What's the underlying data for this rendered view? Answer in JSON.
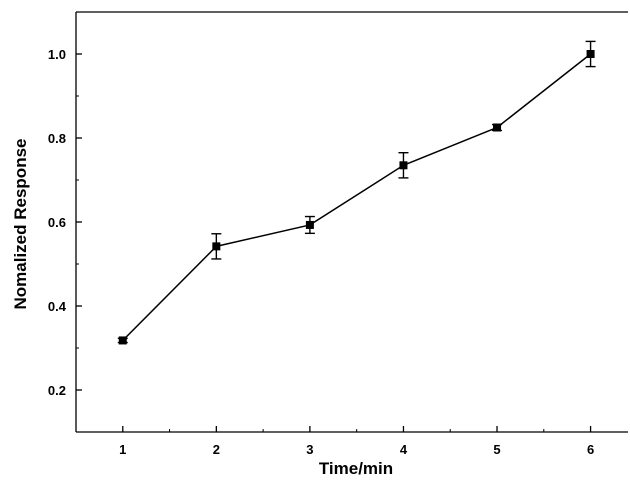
{
  "chart_data": {
    "type": "line",
    "title": "",
    "xlabel": "Time/min",
    "ylabel": "Nomalized Response",
    "x": [
      1,
      2,
      3,
      4,
      5,
      6
    ],
    "x_ticks": [
      "1",
      "2",
      "3",
      "4",
      "5",
      "6"
    ],
    "y_ticks": [
      "0.2",
      "0.4",
      "0.6",
      "0.8",
      "1.0"
    ],
    "xlim": [
      0.5,
      6.4
    ],
    "ylim": [
      0.1,
      1.1
    ],
    "grid": false,
    "series": [
      {
        "values": [
          0.318,
          0.542,
          0.593,
          0.735,
          0.825,
          1.0
        ],
        "errors": [
          0.005,
          0.03,
          0.02,
          0.03,
          0.007,
          0.03
        ],
        "marker": "square",
        "color": "#000000"
      }
    ]
  }
}
